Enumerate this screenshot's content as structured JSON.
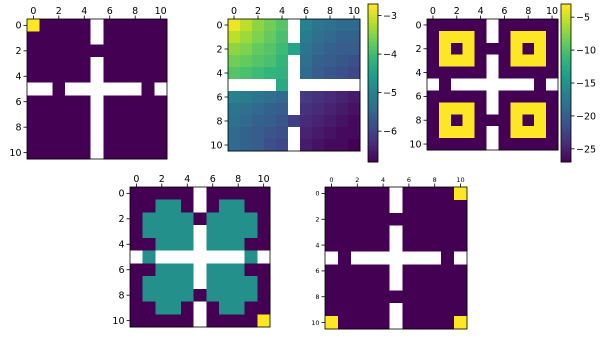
{
  "palette": {
    "viridis": [
      "#440154",
      "#482878",
      "#3e4989",
      "#31688e",
      "#26828e",
      "#1f9e89",
      "#35b779",
      "#6ece58",
      "#b5de2b",
      "#fde725"
    ],
    "blank": "#ffffff",
    "axis": "#000000"
  },
  "chart_data": [
    {
      "type": "heatmap",
      "title": "",
      "xlabel": "",
      "ylabel": "",
      "xticks": [
        "0",
        "2",
        "4",
        "6",
        "8",
        "10"
      ],
      "yticks": [
        "0",
        "2",
        "4",
        "6",
        "8",
        "10"
      ],
      "tick_values": [
        0,
        2,
        4,
        6,
        8,
        10
      ],
      "grid_size": [
        11,
        11
      ],
      "masked_cells": "central cross: column 5 rows 0-1 and 3-10, row 5 columns 0-1, 3-8 and 10",
      "value_range": [
        0,
        1
      ],
      "nonzero_cells": [
        {
          "row": 0,
          "col": 0,
          "value": 1
        }
      ],
      "fill_value": 0,
      "colorbar": null,
      "grid": false
    },
    {
      "type": "heatmap",
      "title": "",
      "xlabel": "",
      "ylabel": "",
      "xticks": [
        "0",
        "2",
        "4",
        "6",
        "8",
        "10"
      ],
      "yticks": [
        "0",
        "2",
        "4",
        "6",
        "8",
        "10"
      ],
      "tick_values": [
        0,
        2,
        4,
        6,
        8,
        10
      ],
      "grid_size": [
        11,
        11
      ],
      "masked_cells": "central cross: column 5 rows 0-1 and 3-4, 6-7 and 9-10, row 5 columns 0-3 and 6-10",
      "value_range": [
        -6.8,
        -2.7
      ],
      "values_note": "estimated",
      "values": [
        [
          -2.8,
          -3.1,
          -3.4,
          -3.6,
          -3.8,
          null,
          -5.0,
          -5.2,
          -5.3,
          -5.4,
          -5.4
        ],
        [
          -3.1,
          -3.3,
          -3.5,
          -3.7,
          -3.9,
          null,
          -5.1,
          -5.3,
          -5.4,
          -5.5,
          -5.5
        ],
        [
          -3.4,
          -3.5,
          -3.7,
          -3.8,
          -4.0,
          -4.4,
          -5.2,
          -5.4,
          -5.5,
          -5.6,
          -5.6
        ],
        [
          -3.6,
          -3.7,
          -3.8,
          -3.9,
          -4.1,
          null,
          -5.3,
          -5.5,
          -5.6,
          -5.7,
          -5.8
        ],
        [
          -3.8,
          -3.9,
          -4.0,
          -4.1,
          -4.2,
          null,
          -5.4,
          -5.6,
          -5.7,
          -5.8,
          -5.9
        ],
        [
          null,
          null,
          null,
          null,
          -4.3,
          null,
          null,
          null,
          null,
          null,
          null
        ],
        [
          -5.0,
          -5.1,
          -5.2,
          -5.3,
          -5.4,
          null,
          -6.1,
          -6.2,
          -6.3,
          -6.4,
          -6.5
        ],
        [
          -5.2,
          -5.3,
          -5.4,
          -5.5,
          -5.6,
          null,
          -6.2,
          -6.3,
          -6.4,
          -6.5,
          -6.6
        ],
        [
          -5.3,
          -5.4,
          -5.5,
          -5.6,
          -5.7,
          -6.0,
          -6.3,
          -6.4,
          -6.5,
          -6.6,
          -6.7
        ],
        [
          -5.4,
          -5.5,
          -5.6,
          -5.7,
          -5.8,
          null,
          -6.4,
          -6.5,
          -6.6,
          -6.7,
          -6.7
        ],
        [
          -5.4,
          -5.5,
          -5.6,
          -5.8,
          -5.9,
          null,
          -6.5,
          -6.6,
          -6.7,
          -6.7,
          -6.8
        ]
      ],
      "colorbar": {
        "ticks": [
          -3,
          -4,
          -5,
          -6
        ],
        "tick_labels": [
          "−3",
          "−4",
          "−5",
          "−6"
        ],
        "range": [
          -6.8,
          -2.7
        ]
      },
      "grid": false
    },
    {
      "type": "heatmap",
      "title": "",
      "xlabel": "",
      "ylabel": "",
      "xticks": [
        "0",
        "2",
        "4",
        "6",
        "8",
        "10"
      ],
      "yticks": [
        "0",
        "2",
        "4",
        "6",
        "8",
        "10"
      ],
      "tick_values": [
        0,
        2,
        4,
        6,
        8,
        10
      ],
      "grid_size": [
        11,
        11
      ],
      "masked_cells": "central cross: column 5 rows 0-1, 3-7 and 9-10, row 5 columns 0, 2-8 and 10",
      "value_range": [
        -27,
        -3
      ],
      "fill_value": -27,
      "rings": [
        {
          "center_row": 2,
          "center_col": 2,
          "ring_value": -3,
          "center_value": -27
        },
        {
          "center_row": 2,
          "center_col": 8,
          "ring_value": -3,
          "center_value": -27
        },
        {
          "center_row": 8,
          "center_col": 2,
          "ring_value": -3,
          "center_value": -27
        },
        {
          "center_row": 8,
          "center_col": 8,
          "ring_value": -3,
          "center_value": -27
        }
      ],
      "colorbar": {
        "ticks": [
          -5,
          -10,
          -15,
          -20,
          -25
        ],
        "tick_labels": [
          "−5",
          "−10",
          "−15",
          "−20",
          "−25"
        ],
        "range": [
          -27,
          -3
        ]
      },
      "grid": false
    },
    {
      "type": "heatmap",
      "title": "",
      "xlabel": "",
      "ylabel": "",
      "xticks": [
        "0",
        "2",
        "4",
        "6",
        "8",
        "10"
      ],
      "yticks": [
        "0",
        "2",
        "4",
        "6",
        "8",
        "10"
      ],
      "tick_values": [
        0,
        2,
        4,
        6,
        8,
        10
      ],
      "grid_size": [
        11,
        11
      ],
      "masked_cells": "central cross: column 5 rows 0-1, 3-7 and 9-10, row 5 columns 0, 2-8 and 10",
      "value_range": [
        0,
        1
      ],
      "mid_value": 0.5,
      "mid_cells": [
        [
          1,
          2
        ],
        [
          1,
          3
        ],
        [
          1,
          7
        ],
        [
          1,
          8
        ],
        [
          2,
          1
        ],
        [
          2,
          2
        ],
        [
          2,
          3
        ],
        [
          2,
          4
        ],
        [
          2,
          6
        ],
        [
          2,
          7
        ],
        [
          2,
          8
        ],
        [
          2,
          9
        ],
        [
          3,
          1
        ],
        [
          3,
          2
        ],
        [
          3,
          3
        ],
        [
          3,
          4
        ],
        [
          3,
          6
        ],
        [
          3,
          7
        ],
        [
          3,
          8
        ],
        [
          3,
          9
        ],
        [
          4,
          2
        ],
        [
          4,
          3
        ],
        [
          4,
          4
        ],
        [
          4,
          6
        ],
        [
          4,
          7
        ],
        [
          4,
          8
        ],
        [
          5,
          1
        ],
        [
          5,
          9
        ],
        [
          6,
          2
        ],
        [
          6,
          3
        ],
        [
          6,
          4
        ],
        [
          6,
          6
        ],
        [
          6,
          7
        ],
        [
          6,
          8
        ],
        [
          7,
          1
        ],
        [
          7,
          2
        ],
        [
          7,
          3
        ],
        [
          7,
          4
        ],
        [
          7,
          6
        ],
        [
          7,
          7
        ],
        [
          7,
          8
        ],
        [
          7,
          9
        ],
        [
          8,
          1
        ],
        [
          8,
          2
        ],
        [
          8,
          3
        ],
        [
          8,
          4
        ],
        [
          8,
          6
        ],
        [
          8,
          7
        ],
        [
          8,
          8
        ],
        [
          8,
          9
        ],
        [
          9,
          2
        ],
        [
          9,
          3
        ],
        [
          9,
          7
        ],
        [
          9,
          8
        ]
      ],
      "nonzero_cells": [
        {
          "row": 10,
          "col": 10,
          "value": 1
        }
      ],
      "fill_value": 0,
      "colorbar": null,
      "grid": false
    },
    {
      "type": "heatmap",
      "title": "",
      "xlabel": "",
      "ylabel": "",
      "xticks": [
        "0",
        "2",
        "4",
        "6",
        "8",
        "10"
      ],
      "yticks": [
        "0",
        "2",
        "4",
        "6",
        "8",
        "10"
      ],
      "tick_values": [
        0,
        2,
        4,
        6,
        8,
        10
      ],
      "grid_size": [
        11,
        11
      ],
      "masked_cells": "central cross: column 5 rows 0-1, 3-7 and 9-10, row 5 columns 0, 2-8 and 10",
      "value_range": [
        0,
        1
      ],
      "nonzero_cells": [
        {
          "row": 0,
          "col": 10,
          "value": 1
        },
        {
          "row": 10,
          "col": 0,
          "value": 1
        },
        {
          "row": 10,
          "col": 10,
          "value": 1
        }
      ],
      "fill_value": 0,
      "colorbar": null,
      "grid": false
    }
  ]
}
